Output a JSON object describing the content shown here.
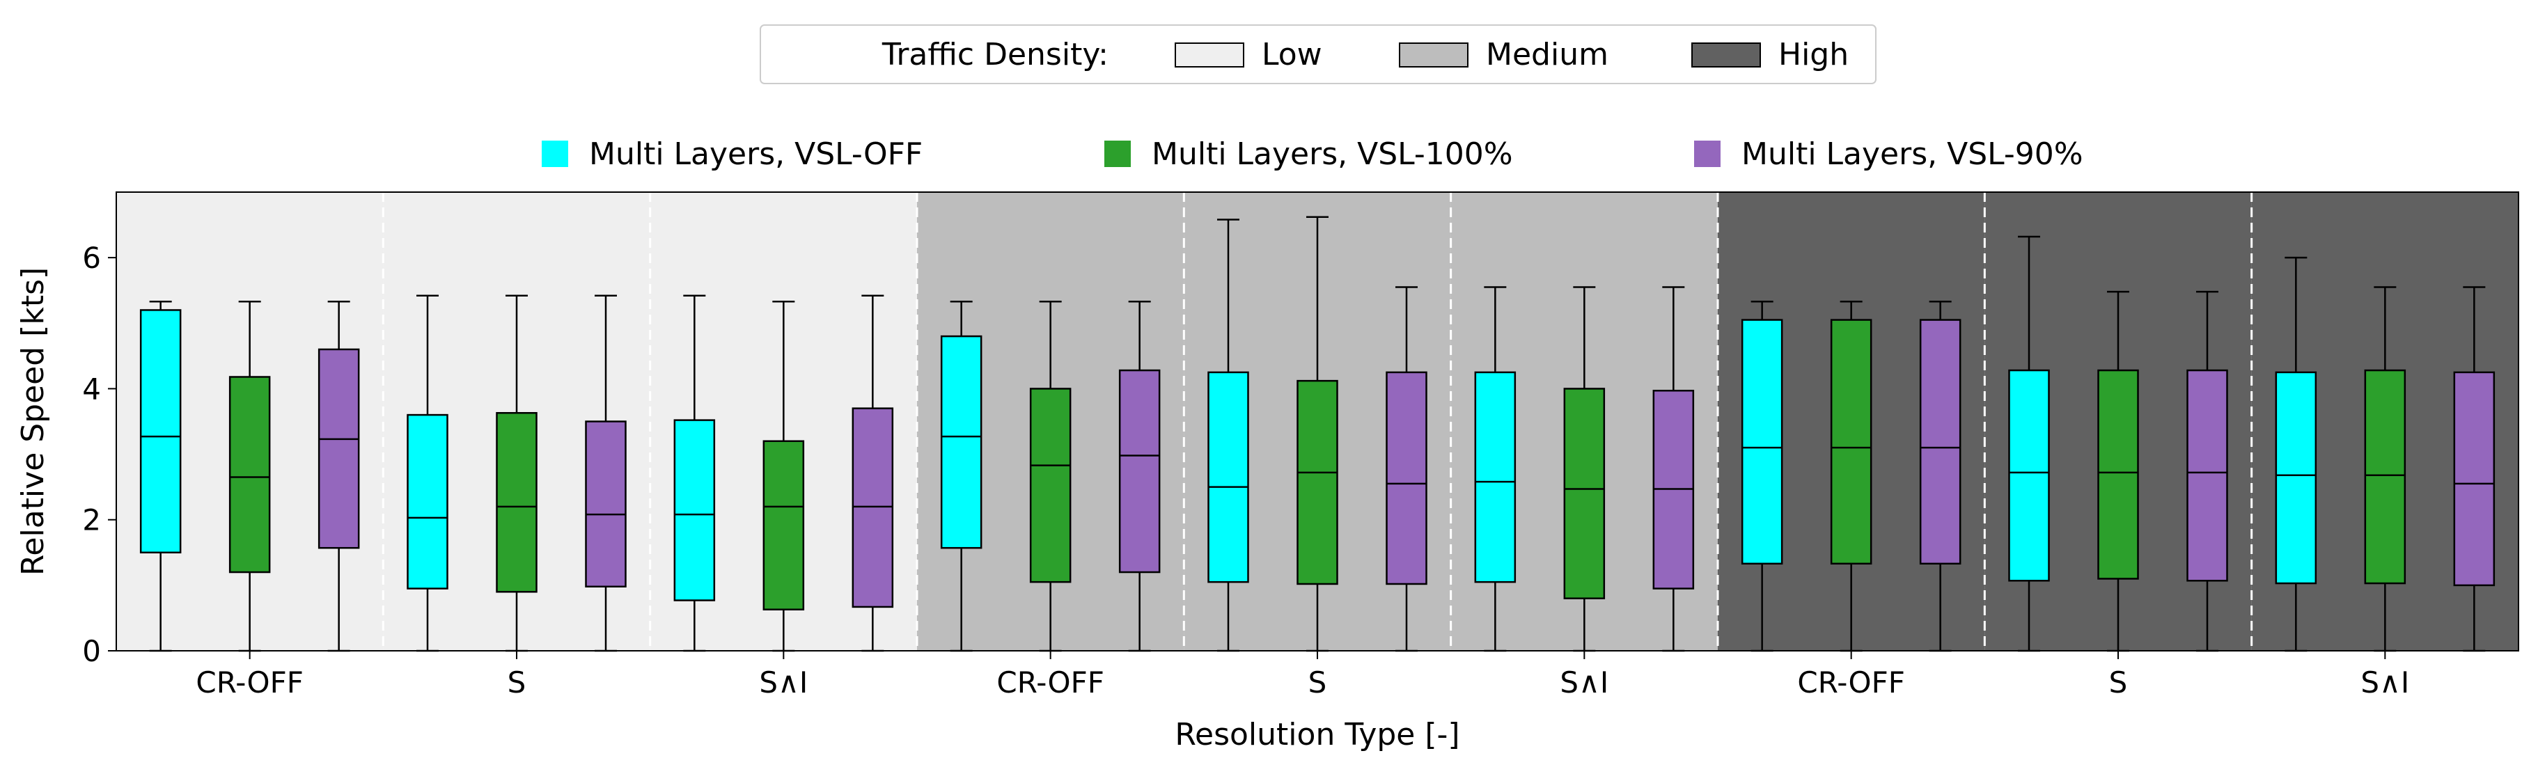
{
  "chart_data": {
    "type": "box",
    "title": "",
    "xlabel": "Resolution Type [-]",
    "ylabel": "Relative Speed [kts]",
    "ylim": [
      0,
      7
    ],
    "yticks": [
      0,
      2,
      4,
      6
    ],
    "density_legend": {
      "title": "Traffic Density:",
      "entries": [
        {
          "label": "Low",
          "color": "#efefef"
        },
        {
          "label": "Medium",
          "color": "#bdbdbd"
        },
        {
          "label": "High",
          "color": "#616161"
        }
      ]
    },
    "series": [
      {
        "name": "Multi Layers, VSL-OFF",
        "color": "#00ffff"
      },
      {
        "name": "Multi Layers, VSL-100%",
        "color": "#2ca02c"
      },
      {
        "name": "Multi Layers, VSL-90%",
        "color": "#9467bd"
      }
    ],
    "groups": [
      {
        "density": "Low",
        "label": "CR-OFF",
        "boxes": [
          {
            "whislo": 0,
            "q1": 1.5,
            "med": 3.27,
            "q3": 5.2,
            "whishi": 5.33
          },
          {
            "whislo": 0,
            "q1": 1.2,
            "med": 2.65,
            "q3": 4.18,
            "whishi": 5.33
          },
          {
            "whislo": 0,
            "q1": 1.57,
            "med": 3.23,
            "q3": 4.6,
            "whishi": 5.33
          }
        ]
      },
      {
        "density": "Low",
        "label": "S",
        "boxes": [
          {
            "whislo": 0,
            "q1": 0.95,
            "med": 2.03,
            "q3": 3.6,
            "whishi": 5.42
          },
          {
            "whislo": 0,
            "q1": 0.9,
            "med": 2.2,
            "q3": 3.63,
            "whishi": 5.42
          },
          {
            "whislo": 0,
            "q1": 0.98,
            "med": 2.08,
            "q3": 3.5,
            "whishi": 5.42
          }
        ]
      },
      {
        "density": "Low",
        "label": "S∧I",
        "boxes": [
          {
            "whislo": 0,
            "q1": 0.77,
            "med": 2.08,
            "q3": 3.52,
            "whishi": 5.42
          },
          {
            "whislo": 0,
            "q1": 0.63,
            "med": 2.2,
            "q3": 3.2,
            "whishi": 5.33
          },
          {
            "whislo": 0,
            "q1": 0.67,
            "med": 2.2,
            "q3": 3.7,
            "whishi": 5.42
          }
        ]
      },
      {
        "density": "Medium",
        "label": "CR-OFF",
        "boxes": [
          {
            "whislo": 0,
            "q1": 1.57,
            "med": 3.27,
            "q3": 4.8,
            "whishi": 5.33
          },
          {
            "whislo": 0,
            "q1": 1.05,
            "med": 2.83,
            "q3": 4.0,
            "whishi": 5.33
          },
          {
            "whislo": 0,
            "q1": 1.2,
            "med": 2.98,
            "q3": 4.28,
            "whishi": 5.33
          }
        ]
      },
      {
        "density": "Medium",
        "label": "S",
        "boxes": [
          {
            "whislo": 0,
            "q1": 1.05,
            "med": 2.5,
            "q3": 4.25,
            "whishi": 6.58
          },
          {
            "whislo": 0,
            "q1": 1.02,
            "med": 2.72,
            "q3": 4.12,
            "whishi": 6.62
          },
          {
            "whislo": 0,
            "q1": 1.02,
            "med": 2.55,
            "q3": 4.25,
            "whishi": 5.55
          }
        ]
      },
      {
        "density": "Medium",
        "label": "S∧I",
        "boxes": [
          {
            "whislo": 0,
            "q1": 1.05,
            "med": 2.58,
            "q3": 4.25,
            "whishi": 5.55
          },
          {
            "whislo": 0,
            "q1": 0.8,
            "med": 2.47,
            "q3": 4.0,
            "whishi": 5.55
          },
          {
            "whislo": 0,
            "q1": 0.95,
            "med": 2.47,
            "q3": 3.97,
            "whishi": 5.55
          }
        ]
      },
      {
        "density": "High",
        "label": "CR-OFF",
        "boxes": [
          {
            "whislo": 0,
            "q1": 1.33,
            "med": 3.1,
            "q3": 5.05,
            "whishi": 5.33
          },
          {
            "whislo": 0,
            "q1": 1.33,
            "med": 3.1,
            "q3": 5.05,
            "whishi": 5.33
          },
          {
            "whislo": 0,
            "q1": 1.33,
            "med": 3.1,
            "q3": 5.05,
            "whishi": 5.33
          }
        ]
      },
      {
        "density": "High",
        "label": "S",
        "boxes": [
          {
            "whislo": 0,
            "q1": 1.07,
            "med": 2.72,
            "q3": 4.28,
            "whishi": 6.32
          },
          {
            "whislo": 0,
            "q1": 1.1,
            "med": 2.72,
            "q3": 4.28,
            "whishi": 5.48
          },
          {
            "whislo": 0,
            "q1": 1.07,
            "med": 2.72,
            "q3": 4.28,
            "whishi": 5.48
          }
        ]
      },
      {
        "density": "High",
        "label": "S∧I",
        "boxes": [
          {
            "whislo": 0,
            "q1": 1.03,
            "med": 2.68,
            "q3": 4.25,
            "whishi": 6.0
          },
          {
            "whislo": 0,
            "q1": 1.03,
            "med": 2.68,
            "q3": 4.28,
            "whishi": 5.55
          },
          {
            "whislo": 0,
            "q1": 1.0,
            "med": 2.55,
            "q3": 4.25,
            "whishi": 5.55
          }
        ]
      }
    ]
  }
}
